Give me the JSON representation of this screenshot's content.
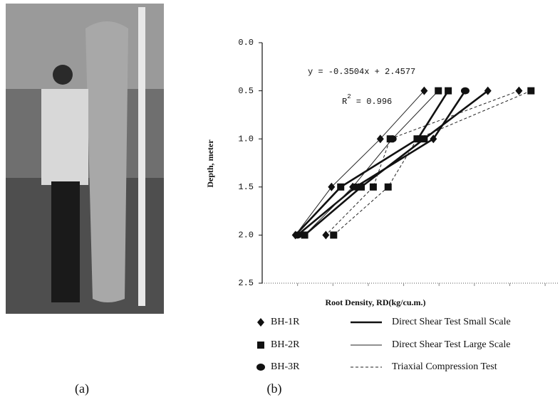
{
  "panel_labels": [
    "(a)",
    "(b)"
  ],
  "chart_data": {
    "type": "scatter-line",
    "x_label": "Root Density, RD(kg/cu.m.)",
    "y_label": "Depth, meter",
    "equation": "y = -0.3504x + 2.4577",
    "r_squared": {
      "base": "R",
      "sup": "2",
      "rest": " = 0.996"
    },
    "xlim": [
      0,
      42
    ],
    "xticks": [
      5,
      10,
      15,
      20,
      25,
      30,
      35,
      40
    ],
    "ylim": [
      0,
      2.5
    ],
    "y_inverted": true,
    "yticks": [
      {
        "value": 0,
        "label": "0.0"
      },
      0.5,
      {
        "value": 1,
        "label": "1.0"
      },
      1.5,
      {
        "value": 2,
        "label": "2.0"
      },
      2.5
    ],
    "bottom_gridline": true,
    "series": [
      {
        "name": "BH-1R",
        "marker": "diamond",
        "color": "#111111",
        "x": [
          22.9,
          31.9,
          36.3,
          16.7,
          24.2,
          9.8,
          12.8,
          4.7,
          9.0
        ],
        "values": [
          0.5,
          0.5,
          0.5,
          1,
          1,
          1.5,
          1.5,
          2,
          2
        ]
      },
      {
        "name": "BH-2R",
        "marker": "square",
        "color": "#111111",
        "x": [
          24.9,
          26.3,
          38.0,
          18.1,
          21.9,
          22.9,
          11.1,
          14.0,
          15.7,
          17.8,
          6.0,
          10.1
        ],
        "values": [
          0.5,
          0.5,
          0.5,
          1,
          1,
          1,
          1.5,
          1.5,
          1.5,
          1.5,
          2,
          2
        ]
      },
      {
        "name": "BH-3R",
        "marker": "circle",
        "color": "#111111",
        "x": [
          28.7,
          18.4,
          22.0,
          13.2,
          5.0
        ],
        "values": [
          0.5,
          1,
          1,
          1.5,
          2
        ]
      }
    ],
    "lines": [
      {
        "name": "Direct Shear Test Small Scale",
        "width": 2.6,
        "dash": "none",
        "color": "#111111",
        "curves": [
          {
            "x": [
              28.7,
              24.2,
              13.2,
              5.0
            ],
            "values": [
              0.5,
              1,
              1.5,
              2
            ]
          },
          {
            "x": [
              26.3,
              22.0,
              11.1,
              4.7
            ],
            "values": [
              0.5,
              1,
              1.5,
              2
            ]
          },
          {
            "x": [
              31.9,
              22.9,
              14.0,
              6.0
            ],
            "values": [
              0.5,
              1,
              1.5,
              2
            ]
          }
        ]
      },
      {
        "name": "Direct Shear Test Large Scale",
        "width": 1,
        "dash": "none",
        "color": "#222222",
        "curves": [
          {
            "x": [
              22.9,
              16.7,
              9.8,
              4.7
            ],
            "values": [
              0.5,
              1,
              1.5,
              2
            ]
          },
          {
            "x": [
              24.9,
              18.4,
              12.8,
              6.0
            ],
            "values": [
              0.5,
              1,
              1.5,
              2
            ]
          }
        ]
      },
      {
        "name": "Triaxial Compression Test",
        "width": 1,
        "dash": "4 3",
        "color": "#222222",
        "curves": [
          {
            "x": [
              38.0,
              21.9,
              17.8,
              10.1
            ],
            "values": [
              0.5,
              1,
              1.5,
              2
            ]
          },
          {
            "x": [
              36.3,
              18.1,
              15.7,
              9.0
            ],
            "values": [
              0.5,
              1,
              1.5,
              2
            ]
          }
        ]
      }
    ]
  }
}
